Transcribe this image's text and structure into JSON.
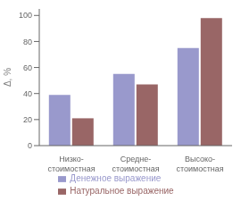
{
  "chart_data": {
    "type": "bar",
    "categories": [
      "Низко-\nстоимостная",
      "Средне-\nстоимостная",
      "Высоко-\nстоимостная"
    ],
    "series": [
      {
        "name": "Денежное выражение",
        "color": "#9999cc",
        "values": [
          39,
          55,
          75
        ]
      },
      {
        "name": "Натуральное выражение",
        "color": "#996666",
        "values": [
          21,
          47,
          98
        ]
      }
    ],
    "ylabel": "Δ, %",
    "ylim": [
      0,
      105
    ],
    "yticks": [
      0,
      20,
      40,
      60,
      80,
      100
    ],
    "grid": false,
    "legend": "bottom"
  }
}
